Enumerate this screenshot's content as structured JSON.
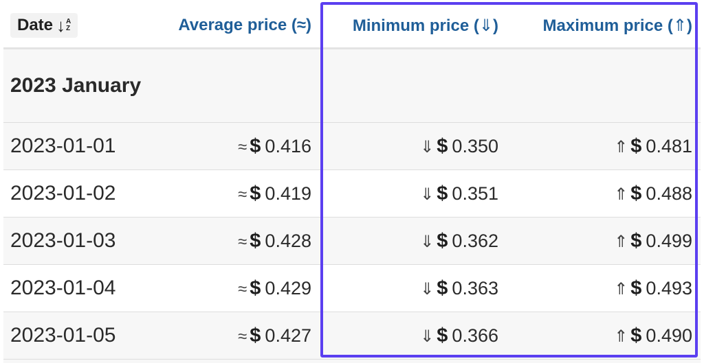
{
  "table": {
    "headers": {
      "date": "Date",
      "date_sort_arrow": "↓",
      "date_sort_a": "A",
      "date_sort_z": "Z",
      "avg": "Average price (≈)",
      "min_text": "Minimum price (",
      "min_icon": "⇓",
      "min_close": ")",
      "max_text": "Maximum price (",
      "max_icon": "⇑",
      "max_close": ")"
    },
    "group": "2023 January",
    "symbols": {
      "avg": "≈",
      "min": "⇓",
      "max": "⇑",
      "currency": "$"
    },
    "rows": [
      {
        "date": "2023-01-01",
        "avg": "0.416",
        "min": "0.350",
        "max": "0.481"
      },
      {
        "date": "2023-01-02",
        "avg": "0.419",
        "min": "0.351",
        "max": "0.488"
      },
      {
        "date": "2023-01-03",
        "avg": "0.428",
        "min": "0.362",
        "max": "0.499"
      },
      {
        "date": "2023-01-04",
        "avg": "0.429",
        "min": "0.363",
        "max": "0.493"
      },
      {
        "date": "2023-01-05",
        "avg": "0.427",
        "min": "0.366",
        "max": "0.490"
      }
    ]
  },
  "colors": {
    "header_text": "#1f5e98",
    "highlight_border": "#5b3ff0",
    "stripe": "#f7f7f7"
  }
}
